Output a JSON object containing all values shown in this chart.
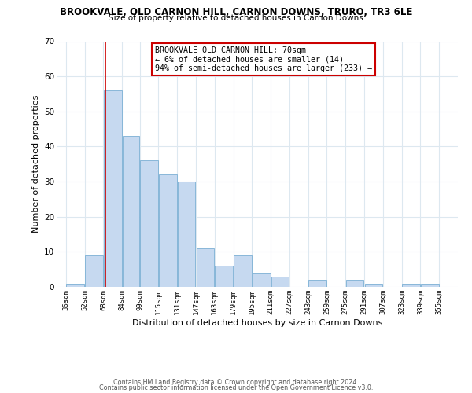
{
  "title": "BROOKVALE, OLD CARNON HILL, CARNON DOWNS, TRURO, TR3 6LE",
  "subtitle": "Size of property relative to detached houses in Carnon Downs",
  "xlabel": "Distribution of detached houses by size in Carnon Downs",
  "ylabel": "Number of detached properties",
  "bar_color": "#c6d9f0",
  "bar_edgecolor": "#7aafd4",
  "vline_x": 70,
  "vline_color": "#cc0000",
  "annotation_title": "BROOKVALE OLD CARNON HILL: 70sqm",
  "annotation_line1": "← 6% of detached houses are smaller (14)",
  "annotation_line2": "94% of semi-detached houses are larger (233) →",
  "annotation_box_color": "#cc0000",
  "bins_left": [
    36,
    52,
    68,
    84,
    99,
    115,
    131,
    147,
    163,
    179,
    195,
    211,
    227,
    243,
    259,
    275,
    291,
    307,
    323,
    339
  ],
  "bin_width": [
    16,
    16,
    16,
    15,
    16,
    16,
    16,
    16,
    16,
    16,
    16,
    16,
    16,
    16,
    16,
    16,
    16,
    16,
    16,
    16
  ],
  "values": [
    1,
    9,
    56,
    43,
    36,
    32,
    30,
    11,
    6,
    9,
    4,
    3,
    0,
    2,
    0,
    2,
    1,
    0,
    1,
    1
  ],
  "xlim_left": 28,
  "xlim_right": 371,
  "ylim": [
    0,
    70
  ],
  "yticks": [
    0,
    10,
    20,
    30,
    40,
    50,
    60,
    70
  ],
  "xtick_labels": [
    "36sqm",
    "52sqm",
    "68sqm",
    "84sqm",
    "99sqm",
    "115sqm",
    "131sqm",
    "147sqm",
    "163sqm",
    "179sqm",
    "195sqm",
    "211sqm",
    "227sqm",
    "243sqm",
    "259sqm",
    "275sqm",
    "291sqm",
    "307sqm",
    "323sqm",
    "339sqm",
    "355sqm"
  ],
  "xtick_positions": [
    36,
    52,
    68,
    84,
    99,
    115,
    131,
    147,
    163,
    179,
    195,
    211,
    227,
    243,
    259,
    275,
    291,
    307,
    323,
    339,
    355
  ],
  "footer1": "Contains HM Land Registry data © Crown copyright and database right 2024.",
  "footer2": "Contains public sector information licensed under the Open Government Licence v3.0.",
  "background_color": "#ffffff",
  "grid_color": "#dde8f0"
}
